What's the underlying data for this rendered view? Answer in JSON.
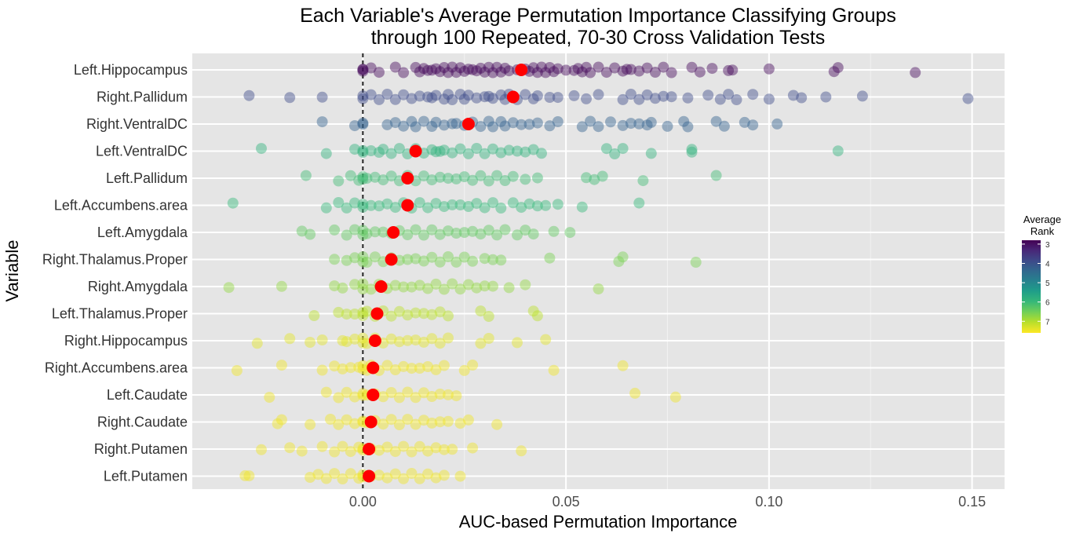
{
  "chart_data": {
    "type": "scatter",
    "title_line1": "Each Variable's Average Permutation Importance Classifying Groups",
    "title_line2": "through 100 Repeated, 70-30 Cross Validation Tests",
    "xlabel": "AUC-based Permutation Importance",
    "ylabel": "Variable",
    "xlim": [
      -0.042,
      0.158
    ],
    "x_ticks": [
      0.0,
      0.05,
      0.1,
      0.15
    ],
    "x_tick_labels": [
      "0.00",
      "0.05",
      "0.10",
      "0.15"
    ],
    "reference_line_x": 0,
    "grid": true,
    "legend": {
      "title_line1": "Average",
      "title_line2": "Rank",
      "position": "right",
      "min": 2.8,
      "max": 7.6,
      "ticks": [
        3,
        4,
        5,
        6,
        7
      ],
      "tick_labels": [
        "3",
        "4",
        "5",
        "6",
        "7"
      ],
      "palette": [
        "#440154",
        "#482878",
        "#3e4989",
        "#31688e",
        "#26828e",
        "#1f9e89",
        "#35b779",
        "#6ece58",
        "#b5de2b",
        "#fde725"
      ]
    },
    "mean_marker_color": "#ff0000",
    "categories": [
      {
        "name": "Left.Hippocampus",
        "avg_rank": 2.9,
        "mean": 0.039,
        "max": 0.136
      },
      {
        "name": "Right.Pallidum",
        "avg_rank": 3.9,
        "mean": 0.037,
        "max": 0.149
      },
      {
        "name": "Right.VentralDC",
        "avg_rank": 4.3,
        "mean": 0.026,
        "max": 0.102
      },
      {
        "name": "Left.VentralDC",
        "avg_rank": 5.9,
        "mean": 0.013,
        "max": 0.117
      },
      {
        "name": "Left.Pallidum",
        "avg_rank": 6.1,
        "mean": 0.011,
        "max": 0.087
      },
      {
        "name": "Left.Accumbens.area",
        "avg_rank": 6.0,
        "mean": 0.011,
        "max": 0.068
      },
      {
        "name": "Left.Amygdala",
        "avg_rank": 6.4,
        "mean": 0.0075,
        "max": 0.051
      },
      {
        "name": "Right.Thalamus.Proper",
        "avg_rank": 6.6,
        "mean": 0.007,
        "max": 0.082
      },
      {
        "name": "Right.Amygdala",
        "avg_rank": 6.8,
        "mean": 0.0045,
        "max": 0.058
      },
      {
        "name": "Left.Thalamus.Proper",
        "avg_rank": 7.1,
        "mean": 0.0035,
        "max": 0.043
      },
      {
        "name": "Right.Hippocampus",
        "avg_rank": 7.4,
        "mean": 0.003,
        "max": 0.045
      },
      {
        "name": "Right.Accumbens.area",
        "avg_rank": 7.5,
        "mean": 0.0025,
        "max": 0.064
      },
      {
        "name": "Left.Caudate",
        "avg_rank": 7.5,
        "mean": 0.0025,
        "max": 0.077
      },
      {
        "name": "Right.Caudate",
        "avg_rank": 7.5,
        "mean": 0.002,
        "max": 0.033
      },
      {
        "name": "Right.Putamen",
        "avg_rank": 7.5,
        "mean": 0.0015,
        "max": 0.039
      },
      {
        "name": "Left.Putamen",
        "avg_rank": 7.5,
        "mean": 0.0015,
        "max": 0.024
      }
    ],
    "points": [
      [
        0,
        0.0,
        0.0,
        0.002,
        0.004,
        0.008,
        0.01,
        0.013,
        0.014,
        0.015,
        0.016,
        0.017,
        0.018,
        0.019,
        0.02,
        0.021,
        0.022,
        0.023,
        0.024,
        0.025,
        0.026,
        0.027,
        0.028,
        0.029,
        0.03,
        0.031,
        0.032,
        0.033,
        0.034,
        0.035,
        0.036,
        0.038,
        0.04,
        0.041,
        0.042,
        0.043,
        0.044,
        0.045,
        0.046,
        0.047,
        0.048,
        0.05,
        0.052,
        0.053,
        0.054,
        0.055,
        0.056,
        0.058,
        0.06,
        0.062,
        0.064,
        0.065,
        0.066,
        0.068,
        0.07,
        0.072,
        0.074,
        0.076,
        0.081,
        0.083,
        0.086,
        0.09,
        0.091,
        0.1,
        0.116,
        0.117,
        0.136
      ],
      [
        -0.028,
        -0.018,
        -0.01,
        0.0,
        0.0,
        0.002,
        0.004,
        0.006,
        0.008,
        0.01,
        0.012,
        0.014,
        0.016,
        0.017,
        0.018,
        0.02,
        0.021,
        0.022,
        0.024,
        0.025,
        0.026,
        0.028,
        0.03,
        0.031,
        0.032,
        0.034,
        0.035,
        0.036,
        0.038,
        0.04,
        0.042,
        0.043,
        0.046,
        0.048,
        0.052,
        0.055,
        0.058,
        0.064,
        0.066,
        0.068,
        0.07,
        0.072,
        0.074,
        0.076,
        0.08,
        0.085,
        0.088,
        0.09,
        0.092,
        0.096,
        0.1,
        0.106,
        0.108,
        0.114,
        0.123,
        0.149
      ],
      [
        -0.01,
        -0.002,
        0.0,
        0.0,
        0.006,
        0.008,
        0.01,
        0.012,
        0.013,
        0.015,
        0.017,
        0.018,
        0.02,
        0.022,
        0.023,
        0.025,
        0.027,
        0.029,
        0.031,
        0.032,
        0.034,
        0.035,
        0.037,
        0.039,
        0.041,
        0.043,
        0.046,
        0.048,
        0.054,
        0.056,
        0.058,
        0.061,
        0.064,
        0.066,
        0.068,
        0.07,
        0.071,
        0.075,
        0.079,
        0.08,
        0.087,
        0.089,
        0.094,
        0.096,
        0.102
      ],
      [
        -0.025,
        -0.009,
        -0.002,
        0.0,
        0.0,
        0.002,
        0.004,
        0.005,
        0.007,
        0.009,
        0.011,
        0.013,
        0.015,
        0.017,
        0.018,
        0.019,
        0.02,
        0.022,
        0.024,
        0.026,
        0.028,
        0.03,
        0.032,
        0.034,
        0.036,
        0.038,
        0.04,
        0.042,
        0.044,
        0.06,
        0.062,
        0.064,
        0.071,
        0.081,
        0.081,
        0.117
      ],
      [
        -0.014,
        -0.006,
        -0.003,
        -0.001,
        0.0,
        0.0,
        0.001,
        0.003,
        0.005,
        0.007,
        0.009,
        0.011,
        0.013,
        0.015,
        0.017,
        0.019,
        0.021,
        0.023,
        0.025,
        0.027,
        0.029,
        0.031,
        0.033,
        0.035,
        0.037,
        0.04,
        0.043,
        0.055,
        0.057,
        0.059,
        0.069,
        0.087
      ],
      [
        -0.032,
        -0.009,
        -0.006,
        -0.004,
        -0.002,
        0.0,
        0.0,
        0.002,
        0.004,
        0.006,
        0.008,
        0.01,
        0.012,
        0.014,
        0.016,
        0.018,
        0.02,
        0.022,
        0.024,
        0.026,
        0.028,
        0.03,
        0.032,
        0.034,
        0.037,
        0.039,
        0.041,
        0.043,
        0.045,
        0.048,
        0.054,
        0.068
      ],
      [
        -0.015,
        -0.013,
        -0.007,
        -0.004,
        -0.002,
        0.0,
        0.0,
        0.001,
        0.003,
        0.005,
        0.007,
        0.009,
        0.011,
        0.013,
        0.015,
        0.017,
        0.019,
        0.021,
        0.023,
        0.025,
        0.027,
        0.029,
        0.031,
        0.033,
        0.035,
        0.038,
        0.04,
        0.042,
        0.047,
        0.051
      ],
      [
        -0.007,
        -0.004,
        -0.002,
        0.0,
        0.0,
        0.001,
        0.003,
        0.005,
        0.007,
        0.009,
        0.011,
        0.013,
        0.015,
        0.017,
        0.019,
        0.021,
        0.023,
        0.025,
        0.027,
        0.03,
        0.032,
        0.034,
        0.046,
        0.063,
        0.064,
        0.082
      ],
      [
        -0.033,
        -0.02,
        -0.007,
        -0.005,
        -0.002,
        0.0,
        0.0,
        0.002,
        0.004,
        0.006,
        0.008,
        0.01,
        0.012,
        0.014,
        0.016,
        0.018,
        0.02,
        0.022,
        0.024,
        0.026,
        0.028,
        0.03,
        0.032,
        0.036,
        0.04,
        0.058
      ],
      [
        -0.012,
        -0.006,
        -0.004,
        -0.002,
        0.0,
        0.0,
        0.001,
        0.003,
        0.005,
        0.007,
        0.009,
        0.011,
        0.013,
        0.015,
        0.017,
        0.019,
        0.021,
        0.029,
        0.031,
        0.042,
        0.043
      ],
      [
        -0.026,
        -0.018,
        -0.013,
        -0.01,
        -0.005,
        -0.004,
        -0.002,
        0.0,
        0.0,
        0.001,
        0.003,
        0.005,
        0.007,
        0.009,
        0.011,
        0.013,
        0.015,
        0.017,
        0.019,
        0.021,
        0.029,
        0.031,
        0.038,
        0.045
      ],
      [
        -0.031,
        -0.02,
        -0.01,
        -0.007,
        -0.005,
        -0.003,
        -0.001,
        0.0,
        0.0,
        0.001,
        0.002,
        0.004,
        0.006,
        0.008,
        0.01,
        0.012,
        0.014,
        0.016,
        0.018,
        0.02,
        0.025,
        0.027,
        0.047,
        0.064
      ],
      [
        -0.023,
        -0.009,
        -0.006,
        -0.004,
        -0.002,
        0.0,
        0.0,
        0.001,
        0.003,
        0.005,
        0.007,
        0.009,
        0.011,
        0.013,
        0.015,
        0.017,
        0.019,
        0.021,
        0.023,
        0.067,
        0.077
      ],
      [
        -0.021,
        -0.02,
        -0.013,
        -0.008,
        -0.006,
        -0.004,
        -0.002,
        0.0,
        0.0,
        0.001,
        0.003,
        0.005,
        0.007,
        0.009,
        0.011,
        0.013,
        0.015,
        0.017,
        0.019,
        0.021,
        0.024,
        0.026,
        0.033
      ],
      [
        -0.025,
        -0.018,
        -0.015,
        -0.01,
        -0.007,
        -0.005,
        -0.003,
        -0.001,
        0.0,
        0.0,
        0.002,
        0.004,
        0.006,
        0.008,
        0.01,
        0.012,
        0.014,
        0.016,
        0.018,
        0.02,
        0.022,
        0.027,
        0.039
      ],
      [
        -0.029,
        -0.028,
        -0.013,
        -0.011,
        -0.009,
        -0.007,
        -0.005,
        -0.003,
        -0.001,
        0.0,
        0.0,
        0.002,
        0.004,
        0.006,
        0.008,
        0.01,
        0.012,
        0.014,
        0.016,
        0.018,
        0.02,
        0.024
      ]
    ]
  }
}
